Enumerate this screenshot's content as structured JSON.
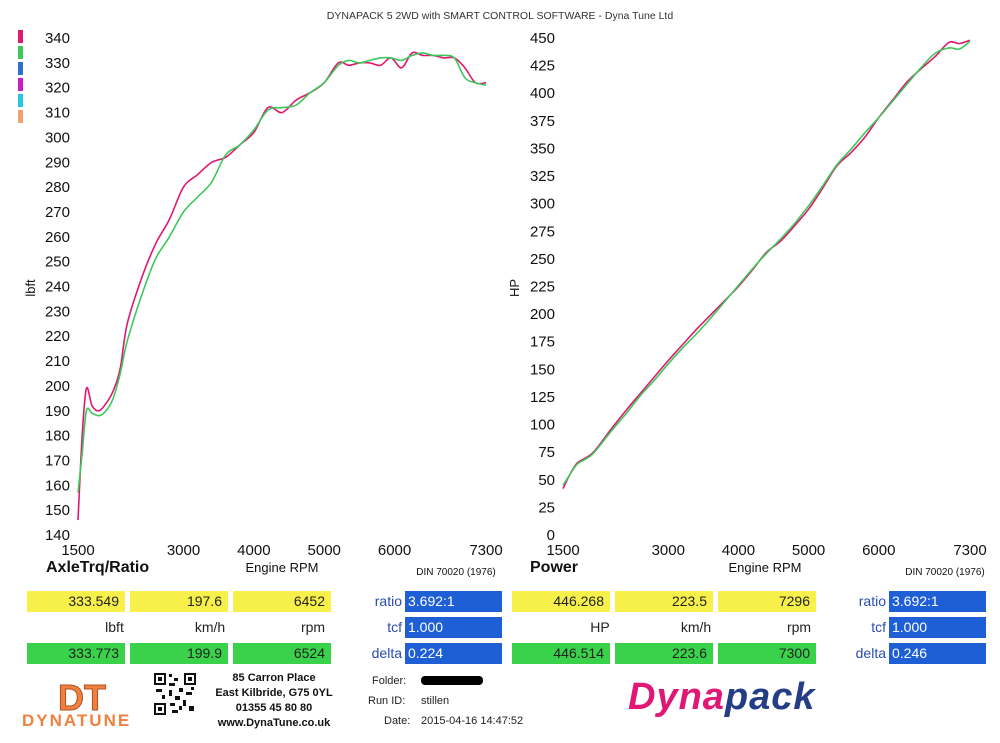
{
  "header": {
    "title": "DYNAPACK 5 2WD with SMART CONTROL SOFTWARE - Dyna Tune Ltd"
  },
  "colors": {
    "run1": "#e0186e",
    "run2": "#3cc85a",
    "legend": [
      "#e0186e",
      "#3cc85a",
      "#2f6fd0",
      "#c81ec8",
      "#25c8dc",
      "#f0a070"
    ]
  },
  "chart_data": [
    {
      "type": "line",
      "title": "AxleTrq/Ratio",
      "xlabel": "Engine RPM",
      "ylabel": "lbft",
      "footnote": "DIN 70020 (1976)",
      "xlim": [
        1500,
        7300
      ],
      "ylim": [
        140,
        340
      ],
      "xticks": [
        1500,
        3000,
        4000,
        5000,
        6000,
        7300
      ],
      "yticks": [
        140,
        150,
        160,
        170,
        180,
        190,
        200,
        210,
        220,
        230,
        240,
        250,
        260,
        270,
        280,
        290,
        300,
        310,
        320,
        330,
        340
      ],
      "series": [
        {
          "x": [
            1500,
            1560,
            1620,
            1700,
            1800,
            1900,
            2000,
            2100,
            2200,
            2400,
            2600,
            2800,
            3000,
            3200,
            3400,
            3600,
            3800,
            4000,
            4200,
            4400,
            4600,
            4800,
            5000,
            5200,
            5350,
            5500,
            5650,
            5800,
            5950,
            6100,
            6250,
            6400,
            6550,
            6700,
            6850,
            7000,
            7150,
            7300
          ],
          "y": [
            146,
            180,
            199,
            192,
            190,
            193,
            198,
            207,
            225,
            243,
            257,
            267,
            280,
            285,
            290,
            292,
            297,
            302,
            312,
            310,
            315,
            318,
            322,
            330,
            329,
            330,
            330,
            329,
            332,
            328,
            334,
            333,
            333,
            332,
            332,
            328,
            322,
            322
          ]
        },
        {
          "x": [
            1500,
            1560,
            1620,
            1700,
            1800,
            1900,
            2000,
            2100,
            2200,
            2400,
            2600,
            2800,
            3000,
            3200,
            3400,
            3600,
            3800,
            4000,
            4200,
            4400,
            4600,
            4800,
            5000,
            5200,
            5350,
            5500,
            5650,
            5800,
            5950,
            6100,
            6250,
            6400,
            6550,
            6700,
            6850,
            7000,
            7150,
            7300
          ],
          "y": [
            157,
            173,
            190,
            189,
            188,
            190,
            195,
            205,
            218,
            236,
            251,
            260,
            270,
            276,
            282,
            293,
            297,
            303,
            311,
            312,
            313,
            318,
            322,
            329,
            331,
            330,
            331,
            332,
            332,
            331,
            333,
            334,
            333,
            333,
            332,
            324,
            322,
            321
          ]
        }
      ]
    },
    {
      "type": "line",
      "title": "Power",
      "xlabel": "Engine RPM",
      "ylabel": "HP",
      "footnote": "DIN 70020 (1976)",
      "xlim": [
        1500,
        7300
      ],
      "ylim": [
        0,
        450
      ],
      "xticks": [
        1500,
        3000,
        4000,
        5000,
        6000,
        7300
      ],
      "yticks": [
        0,
        25,
        50,
        75,
        100,
        125,
        150,
        175,
        200,
        225,
        250,
        275,
        300,
        325,
        350,
        375,
        400,
        425,
        450
      ],
      "series": [
        {
          "x": [
            1500,
            1600,
            1700,
            1800,
            1900,
            2000,
            2200,
            2400,
            2600,
            2800,
            3000,
            3200,
            3400,
            3600,
            3800,
            4000,
            4200,
            4400,
            4600,
            4800,
            5000,
            5200,
            5400,
            5600,
            5800,
            6000,
            6200,
            6400,
            6600,
            6800,
            7000,
            7150,
            7300
          ],
          "y": [
            42,
            55,
            65,
            69,
            73,
            80,
            97,
            113,
            128,
            143,
            158,
            172,
            186,
            199,
            212,
            225,
            240,
            256,
            266,
            280,
            295,
            314,
            334,
            346,
            360,
            378,
            394,
            410,
            422,
            433,
            446,
            445,
            448
          ]
        },
        {
          "x": [
            1500,
            1600,
            1700,
            1800,
            1900,
            2000,
            2200,
            2400,
            2600,
            2800,
            3000,
            3200,
            3400,
            3600,
            3800,
            4000,
            4200,
            4400,
            4600,
            4800,
            5000,
            5200,
            5400,
            5600,
            5800,
            6000,
            6200,
            6400,
            6600,
            6800,
            7000,
            7150,
            7300
          ],
          "y": [
            45,
            55,
            64,
            68,
            72,
            79,
            95,
            110,
            126,
            140,
            155,
            169,
            182,
            196,
            211,
            226,
            241,
            255,
            268,
            282,
            298,
            316,
            335,
            349,
            364,
            378,
            393,
            408,
            423,
            436,
            441,
            440,
            447
          ]
        }
      ]
    }
  ],
  "readouts": {
    "left": {
      "row1": [
        "333.549",
        "197.6",
        "6452"
      ],
      "units": [
        "lbft",
        "km/h",
        "rpm"
      ],
      "row3": [
        "333.773",
        "199.9",
        "6524"
      ],
      "ratio_label": "ratio",
      "ratio_value": "3.692:1",
      "tcf_label": "tcf",
      "tcf_value": "1.000",
      "delta_label": "delta",
      "delta_value": "0.224"
    },
    "right": {
      "row1": [
        "446.268",
        "223.5",
        "7296"
      ],
      "units": [
        "HP",
        "km/h",
        "rpm"
      ],
      "row3": [
        "446.514",
        "223.6",
        "7300"
      ],
      "ratio_label": "ratio",
      "ratio_value": "3.692:1",
      "tcf_label": "tcf",
      "tcf_value": "1.000",
      "delta_label": "delta",
      "delta_value": "0.246"
    }
  },
  "footer": {
    "address": [
      "85 Carron Place",
      "East Kilbride, G75 0YL",
      "01355 45 80 80",
      "www.DynaTune.co.uk"
    ],
    "folder_label": "Folder:",
    "runid_label": "Run ID:",
    "runid_value": "stillen",
    "date_label": "Date:",
    "date_value": "2015-04-16 14:47:52",
    "logo_dt": "DT",
    "logo_dynatune": "DYNATUNE",
    "brand_a": "Dyna",
    "brand_b": "pack"
  }
}
